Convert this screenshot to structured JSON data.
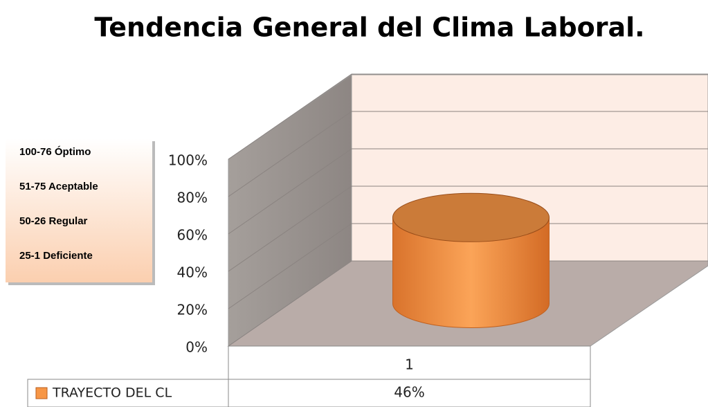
{
  "chart_data": {
    "type": "cylinder",
    "title": "Tendencia General del Clima Laboral.",
    "categories": [
      "1"
    ],
    "series": [
      {
        "name": "TRAYECTO DEL CL",
        "color": "#f79646",
        "values": [
          46
        ],
        "value_labels": [
          "46%"
        ]
      }
    ],
    "ylim": [
      0,
      100
    ],
    "yticks": [
      {
        "value": 0,
        "label": "0%"
      },
      {
        "value": 20,
        "label": "20%"
      },
      {
        "value": 40,
        "label": "40%"
      },
      {
        "value": 60,
        "label": "60%"
      },
      {
        "value": 80,
        "label": "80%"
      },
      {
        "value": 100,
        "label": "100%"
      }
    ],
    "grid": true,
    "annotations": [
      "100-76 Óptimo",
      "51-75 Aceptable",
      "50-26 Regular",
      "25-1 Deficiente"
    ]
  }
}
